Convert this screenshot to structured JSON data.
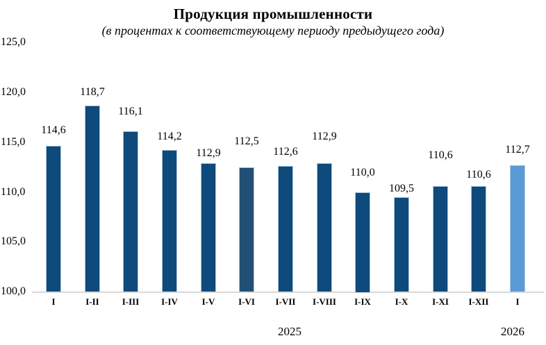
{
  "chart_data": {
    "type": "bar",
    "title": "Продукция промышленности",
    "subtitle": "(в процентах к соответствующему периоду предыдущего года)",
    "categories": [
      "I",
      "I-II",
      "I-III",
      "I-IV",
      "I-V",
      "I-VI",
      "I-VII",
      "I-VIII",
      "I-IX",
      "I-X",
      "I-XI",
      "I-XII",
      "I"
    ],
    "values": [
      114.6,
      118.7,
      116.1,
      114.2,
      112.9,
      112.5,
      112.6,
      112.9,
      110.0,
      109.5,
      110.6,
      110.6,
      112.7
    ],
    "point_labels": [
      "114,6",
      "118,7",
      "116,1",
      "114,2",
      "112,9",
      "112,5",
      "112,6",
      "112,9",
      "110,0",
      "109,5",
      "110,6",
      "110,6",
      "112,7"
    ],
    "bar_color_roles": [
      "primary",
      "primary",
      "primary",
      "primary",
      "primary",
      "accent_dark",
      "primary",
      "primary",
      "primary",
      "primary",
      "primary",
      "primary",
      "accent_light"
    ],
    "colors": {
      "primary": "#0E4A7C",
      "accent_dark": "#224F74",
      "accent_light": "#5B9BD5",
      "bar_edge": "#AEC6DC",
      "light_bar_edge": "#A9C7E8",
      "axis_line": "#D9D9D9",
      "text": "#000000"
    },
    "yticks": [
      {
        "label": "125,0",
        "value": 125
      },
      {
        "label": "120,0",
        "value": 120
      },
      {
        "label": "115,0",
        "value": 115
      },
      {
        "label": "110,0",
        "value": 110
      },
      {
        "label": "105,0",
        "value": 105
      },
      {
        "label": "100,0",
        "value": 100
      }
    ],
    "ylim": [
      100,
      125
    ],
    "ytick_step": 5,
    "grid": false,
    "legend": "none",
    "label_gaps": [
      13,
      10,
      19,
      10,
      5,
      28,
      11,
      29,
      19,
      3,
      35,
      7,
      13
    ],
    "axis_groups": [
      {
        "label": "2025",
        "categories_span": [
          0,
          11
        ]
      },
      {
        "label": "2026",
        "categories_span": [
          12,
          12
        ]
      }
    ]
  }
}
